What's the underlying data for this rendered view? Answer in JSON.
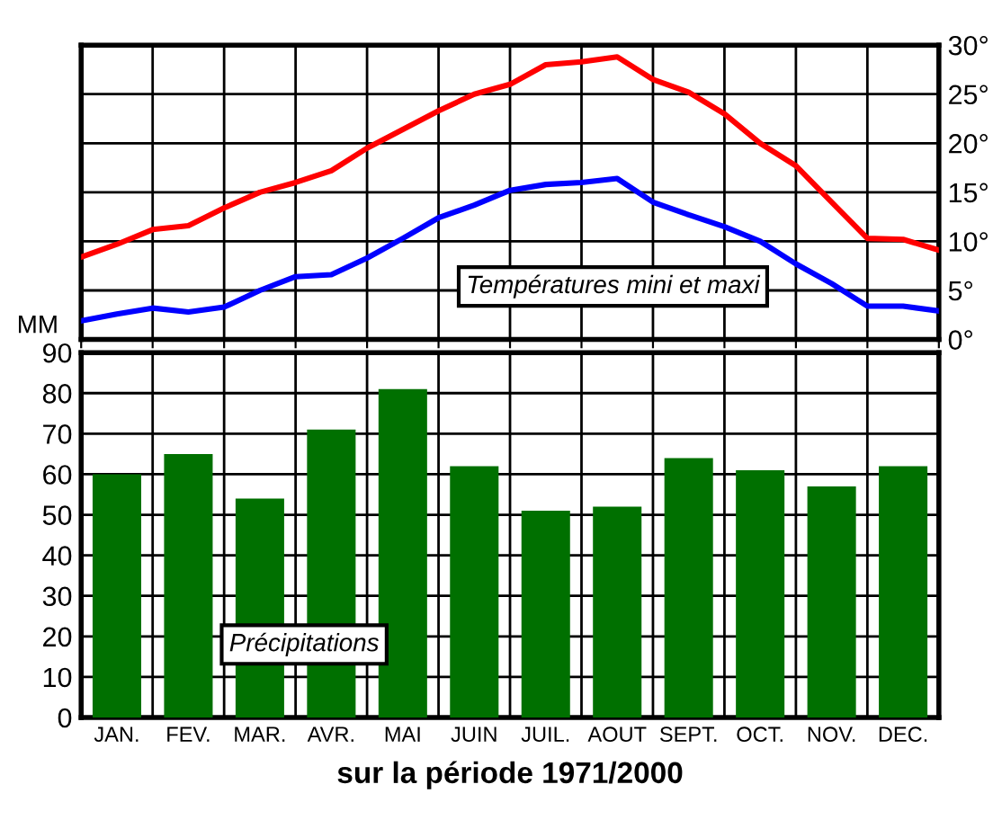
{
  "chart_data": [
    {
      "type": "line",
      "annotations": [
        "Températures mini et maxi"
      ],
      "categories": [
        null,
        null,
        null,
        null,
        null,
        null,
        null,
        null,
        null,
        null,
        null,
        null,
        null,
        null,
        null,
        null,
        null,
        null,
        null,
        null,
        null,
        null,
        null,
        null,
        null
      ],
      "ylim": [
        0,
        30
      ],
      "yticks": [
        {
          "value": 0,
          "label": "0°"
        },
        {
          "value": 5,
          "label": "5°"
        },
        {
          "value": 10,
          "label": "10°"
        },
        {
          "value": 15,
          "label": "15°"
        },
        {
          "value": 20,
          "label": "20°"
        },
        {
          "value": 25,
          "label": "25°"
        },
        {
          "value": 30,
          "label": "30°"
        }
      ],
      "tick_labels": "y",
      "grid": true,
      "series": [
        {
          "color": "#ff0000",
          "values": [
            8.4,
            9.7,
            11.2,
            11.6,
            13.4,
            15,
            16,
            17.2,
            19.5,
            21.4,
            23.3,
            25,
            26,
            28,
            28.3,
            28.8,
            26.5,
            25.2,
            23,
            20,
            17.7,
            14,
            10.3,
            10.2,
            9.1
          ]
        },
        {
          "color": "#0000ff",
          "values": [
            1.9,
            2.6,
            3.2,
            2.8,
            3.3,
            5,
            6.4,
            6.6,
            8.3,
            10.3,
            12.4,
            13.7,
            15.2,
            15.8,
            16,
            16.4,
            14,
            12.7,
            11.5,
            10,
            7.7,
            5.7,
            3.4,
            3.4,
            2.9
          ]
        }
      ]
    },
    {
      "type": "bar",
      "ylabel": "MM",
      "xlabel": "sur la période 1971/2000",
      "annotations": [
        "Précipitations"
      ],
      "categories": [
        "JAN.",
        "FEV.",
        "MAR.",
        "AVR.",
        "MAI",
        "JUIN",
        "JUIL.",
        "AOUT",
        "SEPT.",
        "OCT.",
        "NOV.",
        "DEC."
      ],
      "values": [
        60,
        65,
        54,
        71,
        81,
        62,
        51,
        52,
        64,
        61,
        57,
        62
      ],
      "color": "#007000",
      "ylim": [
        0,
        90
      ],
      "yticks": [
        0,
        10,
        20,
        30,
        40,
        50,
        60,
        70,
        80,
        90
      ],
      "grid": true
    }
  ]
}
